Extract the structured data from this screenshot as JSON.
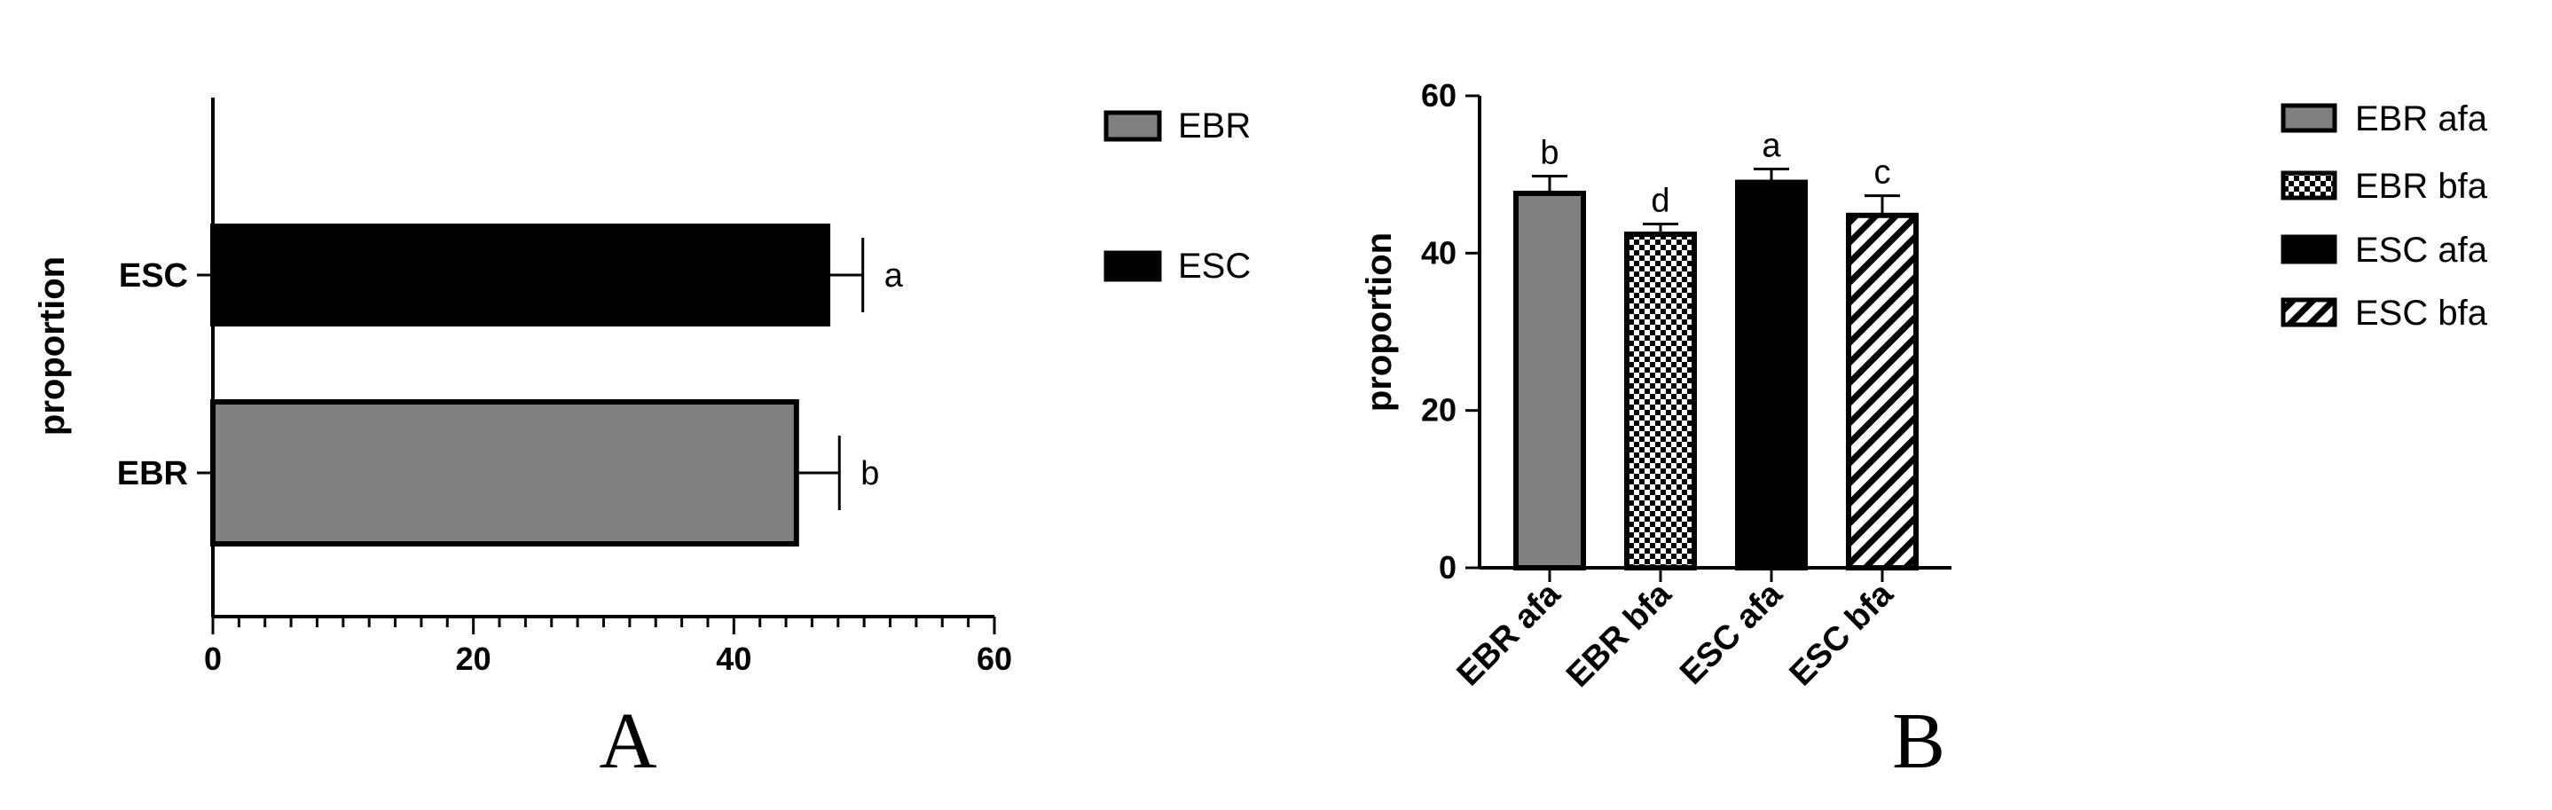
{
  "chart_data": [
    {
      "type": "bar",
      "orientation": "horizontal",
      "panel_label": "A",
      "ylabel": "proportion",
      "xlabel": "",
      "categories": [
        "ESC",
        "EBR"
      ],
      "values": [
        47.2,
        44.8
      ],
      "error": [
        2.7,
        3.3
      ],
      "significance": [
        "a",
        "b"
      ],
      "fills": [
        "#000000",
        "#808080"
      ],
      "xlim": [
        0,
        60
      ],
      "xticks": [
        "0",
        "20",
        "40",
        "60"
      ],
      "legend": [
        {
          "label": "EBR",
          "fill": "#808080"
        },
        {
          "label": "ESC",
          "fill": "#000000"
        }
      ],
      "legend_position": "right"
    },
    {
      "type": "bar",
      "orientation": "vertical",
      "panel_label": "B",
      "ylabel": "proportion",
      "xlabel": "",
      "categories": [
        "EBR afa",
        "EBR bfa",
        "ESC afa",
        "ESC bfa"
      ],
      "values": [
        47.6,
        42.4,
        49.0,
        44.8
      ],
      "error": [
        2.2,
        1.3,
        1.7,
        2.5
      ],
      "significance": [
        "b",
        "d",
        "a",
        "c"
      ],
      "fills": [
        "gray",
        "checker",
        "black",
        "hatch"
      ],
      "ylim": [
        0,
        60
      ],
      "yticks": [
        "0",
        "20",
        "40",
        "60"
      ],
      "legend": [
        {
          "label": "EBR afa",
          "fill": "gray"
        },
        {
          "label": "EBR bfa",
          "fill": "checker"
        },
        {
          "label": "ESC afa",
          "fill": "black"
        },
        {
          "label": "ESC bfa",
          "fill": "hatch"
        }
      ],
      "legend_position": "right"
    }
  ]
}
